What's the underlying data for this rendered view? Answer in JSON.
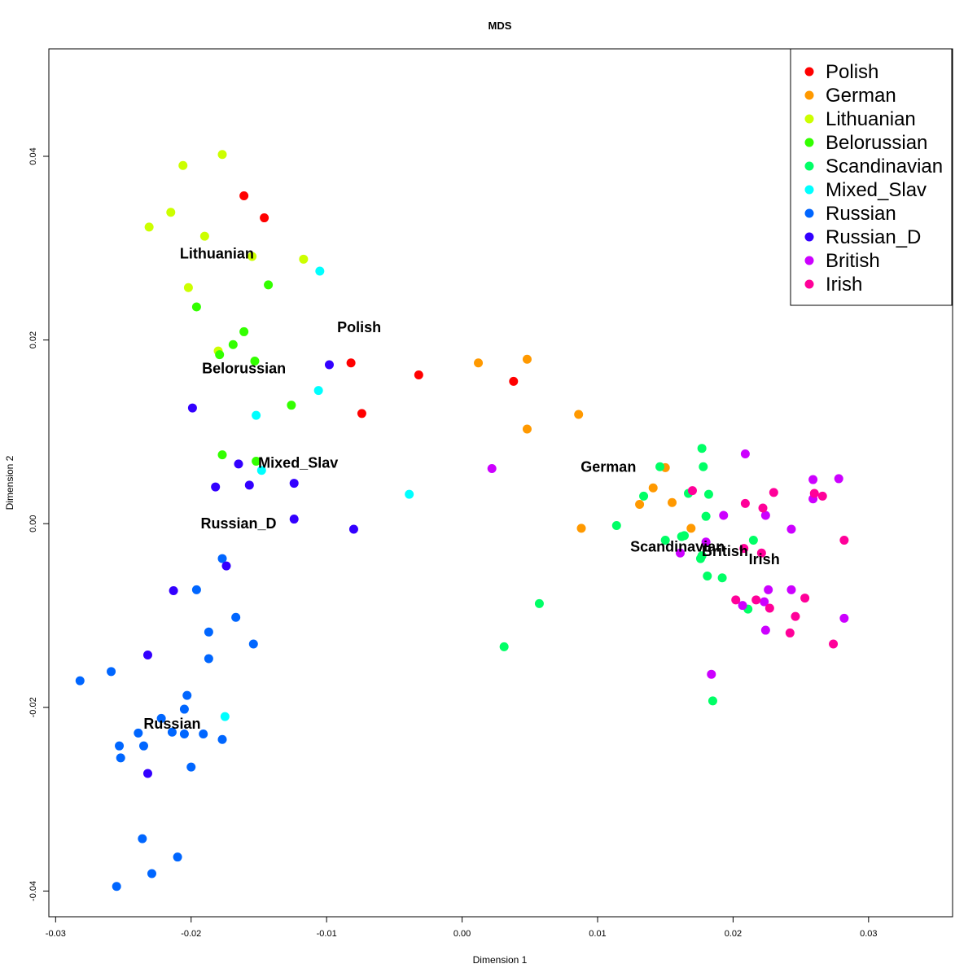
{
  "chart_data": {
    "type": "scatter",
    "title": "MDS",
    "xlabel": "Dimension 1",
    "ylabel": "Dimension 2",
    "xlim": [
      -0.0305,
      0.0362
    ],
    "ylim": [
      -0.0428,
      0.0517
    ],
    "xticks": [
      -0.03,
      -0.02,
      -0.01,
      0.0,
      0.01,
      0.02,
      0.03
    ],
    "xtick_labels": [
      "-0.03",
      "-0.02",
      "-0.01",
      "0.00",
      "0.01",
      "0.02",
      "0.03"
    ],
    "yticks": [
      -0.04,
      -0.02,
      0.0,
      0.02,
      0.04
    ],
    "ytick_labels": [
      "-0.04",
      "-0.02",
      "0.00",
      "0.02",
      "0.04"
    ],
    "grid": false,
    "legend_position": "top-right",
    "series": [
      {
        "name": "Polish",
        "color": "#FF0000",
        "label_at": [
          -0.0076,
          0.0214
        ],
        "x": [
          -0.0161,
          -0.0146,
          -0.0082,
          -0.0074,
          -0.0032,
          0.0038
        ],
        "y": [
          0.0357,
          0.0333,
          0.0175,
          0.012,
          0.0162,
          0.0155
        ]
      },
      {
        "name": "German",
        "color": "#FF9900",
        "label_at": [
          0.0108,
          0.0062
        ],
        "x": [
          0.0012,
          0.0048,
          0.0048,
          0.0086,
          0.0088,
          0.0131,
          0.0141,
          0.015,
          0.0155,
          0.0169
        ],
        "y": [
          0.0175,
          0.0179,
          0.0103,
          0.0119,
          -0.0005,
          0.0021,
          0.0039,
          0.0061,
          0.0023,
          -0.0005
        ]
      },
      {
        "name": "Lithuanian",
        "color": "#CCFF00",
        "label_at": [
          -0.0181,
          0.0294
        ],
        "x": [
          -0.0206,
          -0.0177,
          -0.0215,
          -0.019,
          -0.0231,
          -0.0117,
          -0.0155,
          -0.0202,
          -0.018
        ],
        "y": [
          0.039,
          0.0402,
          0.0339,
          0.0313,
          0.0323,
          0.0288,
          0.0291,
          0.0257,
          0.0188
        ]
      },
      {
        "name": "Belorussian",
        "color": "#33FF00",
        "label_at": [
          -0.0161,
          0.0169
        ],
        "x": [
          -0.0143,
          -0.0196,
          -0.0161,
          -0.0169,
          -0.0179,
          -0.0153,
          -0.0126,
          -0.0177,
          -0.0152
        ],
        "y": [
          0.026,
          0.0236,
          0.0209,
          0.0195,
          0.0184,
          0.0177,
          0.0129,
          0.0075,
          0.0068
        ]
      },
      {
        "name": "Scandinavian",
        "color": "#00FF66",
        "label_at": [
          0.0159,
          -0.0025
        ],
        "x": [
          0.0114,
          0.0134,
          0.0146,
          0.015,
          0.0162,
          0.0164,
          0.0167,
          0.0177,
          0.0178,
          0.018,
          0.0181,
          0.0182,
          0.0192,
          0.0176,
          0.0177,
          0.0215,
          0.0211,
          0.0057,
          0.0031,
          0.0185
        ],
        "y": [
          -0.0002,
          0.003,
          0.0062,
          -0.0018,
          -0.0014,
          -0.0013,
          0.0033,
          0.0082,
          0.0062,
          0.0008,
          -0.0057,
          0.0032,
          -0.0059,
          -0.0038,
          -0.0035,
          -0.0018,
          -0.0093,
          -0.0087,
          -0.0134,
          -0.0193
        ]
      },
      {
        "name": "Mixed_Slav",
        "color": "#00FFFF",
        "label_at": [
          -0.0121,
          0.0066
        ],
        "x": [
          -0.0105,
          -0.0106,
          -0.0152,
          -0.0148,
          -0.0039,
          -0.0175
        ],
        "y": [
          0.0275,
          0.0145,
          0.0118,
          0.0058,
          0.0032,
          -0.021
        ]
      },
      {
        "name": "Russian",
        "color": "#0066FF",
        "label_at": [
          -0.0214,
          -0.0218
        ],
        "x": [
          -0.0177,
          -0.0196,
          -0.0167,
          -0.0187,
          -0.0154,
          -0.0187,
          -0.0282,
          -0.0259,
          -0.0203,
          -0.0205,
          -0.0222,
          -0.0239,
          -0.0214,
          -0.0205,
          -0.0191,
          -0.0177,
          -0.0253,
          -0.0235,
          -0.0252,
          -0.02,
          -0.0236,
          -0.021,
          -0.0229,
          -0.0255
        ],
        "y": [
          -0.0038,
          -0.0072,
          -0.0102,
          -0.0118,
          -0.0131,
          -0.0147,
          -0.0171,
          -0.0161,
          -0.0187,
          -0.0202,
          -0.0212,
          -0.0228,
          -0.0227,
          -0.0229,
          -0.0229,
          -0.0235,
          -0.0242,
          -0.0242,
          -0.0255,
          -0.0265,
          -0.0343,
          -0.0363,
          -0.0381,
          -0.0395
        ]
      },
      {
        "name": "Russian_D",
        "color": "#3300FF",
        "label_at": [
          -0.0165,
          0.0
        ],
        "x": [
          -0.0098,
          -0.0199,
          -0.0165,
          -0.0182,
          -0.0157,
          -0.0124,
          -0.0124,
          -0.008,
          -0.0174,
          -0.0213,
          -0.0232,
          -0.0232
        ],
        "y": [
          0.0173,
          0.0126,
          0.0065,
          0.004,
          0.0042,
          0.0044,
          0.0005,
          -0.0006,
          -0.0046,
          -0.0073,
          -0.0143,
          -0.0272
        ]
      },
      {
        "name": "British",
        "color": "#CC00FF",
        "label_at": [
          0.0194,
          -0.003
        ],
        "x": [
          0.0022,
          0.0209,
          0.0259,
          0.0278,
          0.0259,
          0.0193,
          0.0224,
          0.0243,
          0.0161,
          0.018,
          0.0226,
          0.0243,
          0.0223,
          0.0207,
          0.0224,
          0.0282,
          0.0184
        ],
        "y": [
          0.006,
          0.0076,
          0.0048,
          0.0049,
          0.0027,
          0.0009,
          0.0009,
          -0.0006,
          -0.0032,
          -0.002,
          -0.0072,
          -0.0072,
          -0.0085,
          -0.0089,
          -0.0116,
          -0.0103,
          -0.0164
        ]
      },
      {
        "name": "Irish",
        "color": "#FF0099",
        "label_at": [
          0.0223,
          -0.0039
        ],
        "x": [
          0.017,
          0.0209,
          0.023,
          0.0222,
          0.026,
          0.0266,
          0.0282,
          0.0202,
          0.0217,
          0.0227,
          0.0253,
          0.0246,
          0.0242,
          0.0274,
          0.0208,
          0.0221
        ],
        "y": [
          0.0036,
          0.0022,
          0.0034,
          0.0017,
          0.0033,
          0.003,
          -0.0018,
          -0.0083,
          -0.0083,
          -0.0092,
          -0.0081,
          -0.0101,
          -0.0119,
          -0.0131,
          -0.0027,
          -0.0032
        ]
      }
    ]
  }
}
